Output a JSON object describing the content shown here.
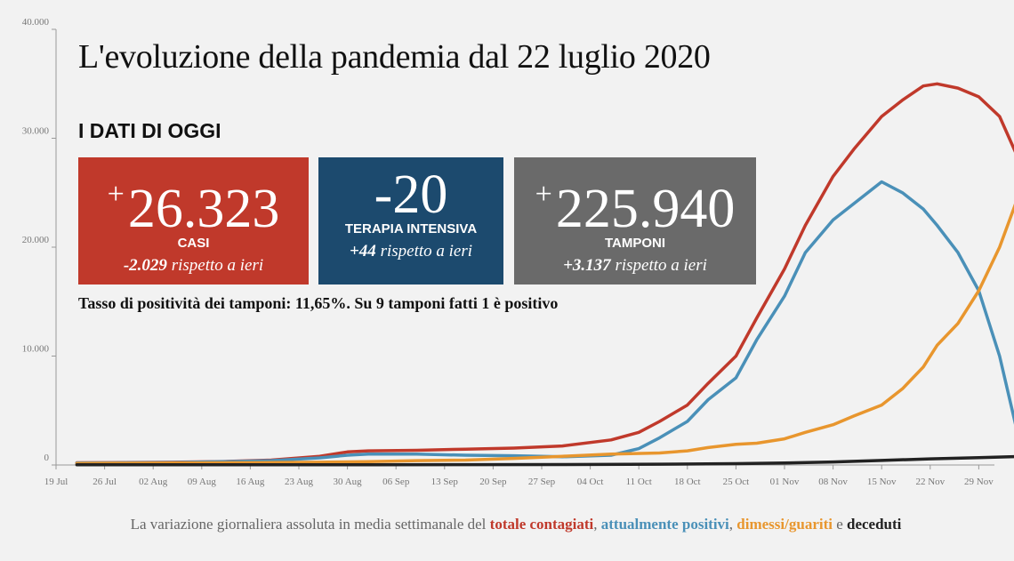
{
  "title": "L'evoluzione della pandemia dal 22 luglio 2020",
  "section_label": "I DATI DI OGGI",
  "boxes": {
    "casi": {
      "sign": "+",
      "value": "26.323",
      "caption": "CASI",
      "delta_value": "-2.029",
      "delta_text": " rispetto a ieri",
      "color": "#c0392b"
    },
    "terapia_intensiva": {
      "sign": "",
      "value": "-20",
      "caption": "TERAPIA INTENSIVA",
      "delta_value": "+44",
      "delta_text": " rispetto a ieri",
      "color": "#1c4a6e"
    },
    "tamponi": {
      "sign": "+",
      "value": "225.940",
      "caption": "TAMPONI",
      "delta_value": "+3.137",
      "delta_text": " rispetto a ieri",
      "color": "#6a6a6a"
    }
  },
  "positivity_text": "Tasso di positività dei tamponi: 11,65%. Su 9 tamponi fatti 1 è positivo",
  "footer": {
    "prefix": "La variazione giornaliera assoluta in media settimanale del ",
    "s1": "totale contagiati",
    "sep1": ", ",
    "s2": "attualmente positivi",
    "sep2": ", ",
    "s3": "dimessi/guariti",
    "sep3": " e ",
    "s4": "deceduti"
  },
  "colors": {
    "totale": "#c0392b",
    "attualmente": "#4a90b8",
    "dimessi": "#e8962e",
    "deceduti": "#222222"
  },
  "chart_data": {
    "type": "line",
    "x_tick_labels": [
      "19 Jul",
      "26 Jul",
      "02 Aug",
      "09 Aug",
      "16 Aug",
      "23 Aug",
      "30 Aug",
      "06 Sep",
      "13 Sep",
      "20 Sep",
      "27 Sep",
      "04 Oct",
      "11 Oct",
      "18 Oct",
      "25 Oct",
      "01 Nov",
      "08 Nov",
      "15 Nov",
      "22 Nov",
      "29 Nov"
    ],
    "y_tick_labels": [
      "0",
      "10.000",
      "20.000",
      "30.000",
      "40.000"
    ],
    "ylim": [
      0,
      40000
    ],
    "x_range_days": [
      0,
      133
    ],
    "grid": false,
    "series": [
      {
        "key": "totale",
        "color": "#c0392b",
        "points": [
          [
            3,
            200
          ],
          [
            10,
            220
          ],
          [
            17,
            250
          ],
          [
            24,
            320
          ],
          [
            31,
            450
          ],
          [
            38,
            800
          ],
          [
            42,
            1200
          ],
          [
            45,
            1300
          ],
          [
            52,
            1350
          ],
          [
            59,
            1450
          ],
          [
            66,
            1550
          ],
          [
            73,
            1750
          ],
          [
            80,
            2300
          ],
          [
            84,
            3000
          ],
          [
            87,
            4000
          ],
          [
            91,
            5500
          ],
          [
            94,
            7500
          ],
          [
            98,
            10000
          ],
          [
            101,
            13500
          ],
          [
            105,
            18000
          ],
          [
            108,
            22000
          ],
          [
            112,
            26500
          ],
          [
            115,
            29000
          ],
          [
            119,
            32000
          ],
          [
            122,
            33500
          ],
          [
            125,
            34800
          ],
          [
            127,
            35000
          ],
          [
            130,
            34600
          ],
          [
            133,
            33800
          ],
          [
            136,
            32000
          ],
          [
            139,
            27700
          ]
        ]
      },
      {
        "key": "attualmente",
        "color": "#4a90b8",
        "points": [
          [
            3,
            180
          ],
          [
            10,
            200
          ],
          [
            17,
            230
          ],
          [
            24,
            300
          ],
          [
            31,
            400
          ],
          [
            38,
            650
          ],
          [
            42,
            900
          ],
          [
            45,
            1000
          ],
          [
            52,
            1000
          ],
          [
            59,
            900
          ],
          [
            66,
            850
          ],
          [
            73,
            750
          ],
          [
            80,
            900
          ],
          [
            84,
            1500
          ],
          [
            87,
            2500
          ],
          [
            91,
            4000
          ],
          [
            94,
            6000
          ],
          [
            98,
            8000
          ],
          [
            101,
            11500
          ],
          [
            105,
            15500
          ],
          [
            108,
            19500
          ],
          [
            112,
            22500
          ],
          [
            115,
            24000
          ],
          [
            118,
            25500
          ],
          [
            119,
            26000
          ],
          [
            122,
            25000
          ],
          [
            125,
            23500
          ],
          [
            127,
            22000
          ],
          [
            130,
            19500
          ],
          [
            133,
            16000
          ],
          [
            136,
            10000
          ],
          [
            139,
            1800
          ]
        ]
      },
      {
        "key": "dimessi",
        "color": "#e8962e",
        "points": [
          [
            3,
            150
          ],
          [
            10,
            160
          ],
          [
            17,
            180
          ],
          [
            24,
            200
          ],
          [
            31,
            220
          ],
          [
            38,
            250
          ],
          [
            45,
            300
          ],
          [
            52,
            400
          ],
          [
            59,
            450
          ],
          [
            66,
            600
          ],
          [
            73,
            800
          ],
          [
            80,
            1000
          ],
          [
            87,
            1100
          ],
          [
            91,
            1300
          ],
          [
            94,
            1600
          ],
          [
            98,
            1900
          ],
          [
            101,
            2000
          ],
          [
            105,
            2400
          ],
          [
            108,
            3000
          ],
          [
            112,
            3700
          ],
          [
            115,
            4500
          ],
          [
            119,
            5500
          ],
          [
            122,
            7000
          ],
          [
            125,
            9000
          ],
          [
            127,
            11000
          ],
          [
            130,
            13000
          ],
          [
            133,
            16000
          ],
          [
            136,
            20000
          ],
          [
            139,
            25200
          ]
        ]
      },
      {
        "key": "deceduti",
        "color": "#222222",
        "points": [
          [
            3,
            20
          ],
          [
            17,
            20
          ],
          [
            31,
            20
          ],
          [
            45,
            25
          ],
          [
            59,
            30
          ],
          [
            73,
            40
          ],
          [
            87,
            70
          ],
          [
            98,
            120
          ],
          [
            105,
            180
          ],
          [
            112,
            280
          ],
          [
            119,
            420
          ],
          [
            126,
            560
          ],
          [
            133,
            670
          ],
          [
            139,
            780
          ]
        ]
      }
    ]
  }
}
